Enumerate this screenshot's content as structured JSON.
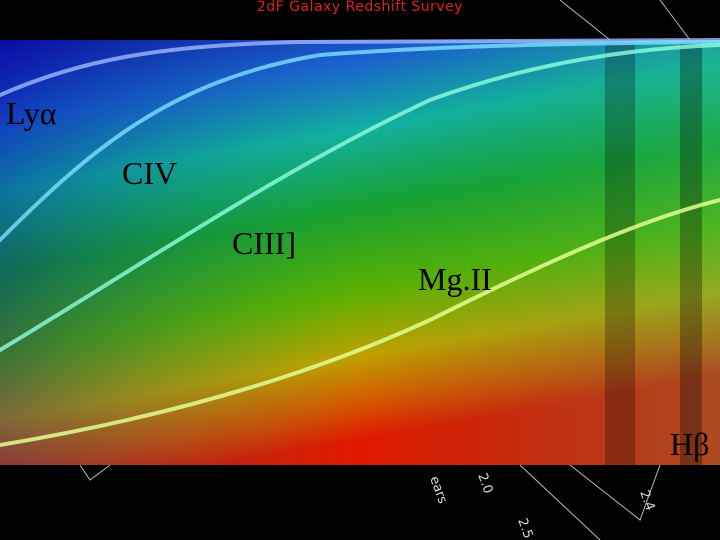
{
  "header": {
    "title": "2dF Galaxy Redshift Survey"
  },
  "labels": [
    "Lyα",
    "CIV",
    "CIII]",
    "Mg.II",
    "Hβ"
  ],
  "fragments": [
    "ears",
    "2.0",
    "2.5",
    "2.4"
  ]
}
